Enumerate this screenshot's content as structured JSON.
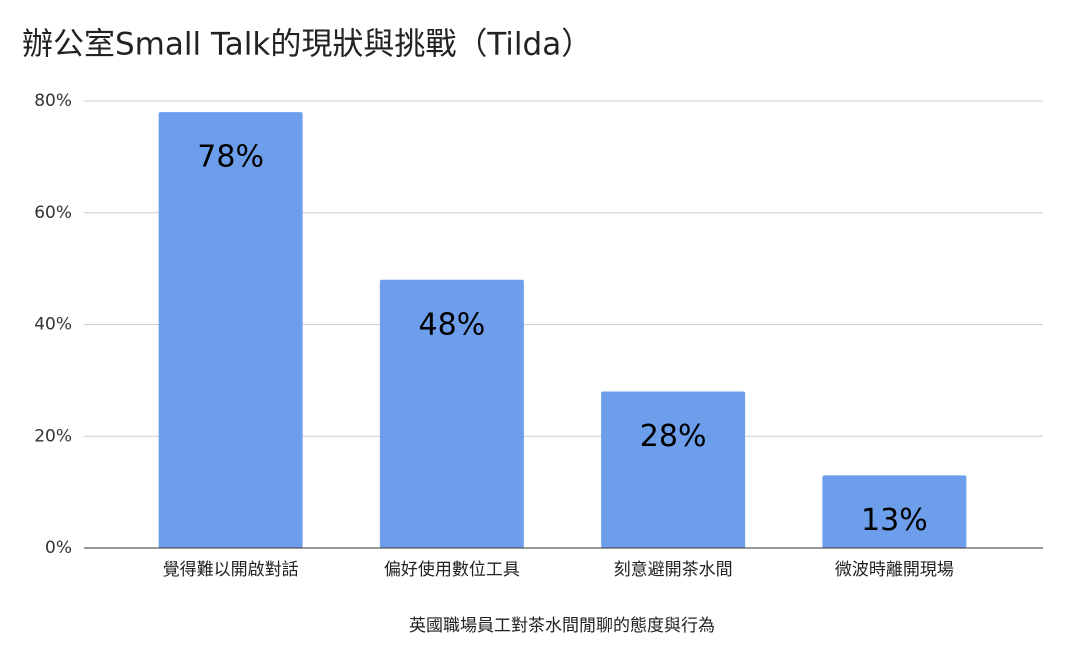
{
  "chart_data": {
    "type": "bar",
    "title": "辦公室Small Talk的現狀與挑戰（Tilda）",
    "x_label": "英國職場員工對茶水間閒聊的態度與行為",
    "categories": [
      "覺得難以開啟對話",
      "偏好使用數位工具",
      "刻意避開茶水間",
      "微波時離開現場"
    ],
    "values": [
      78,
      48,
      28,
      13
    ],
    "value_labels": [
      "78%",
      "48%",
      "28%",
      "13%"
    ],
    "color": "#6d9eeb",
    "ylim": [
      0,
      80
    ],
    "yticks": [
      {
        "value": 0,
        "label": "0%"
      },
      {
        "value": 20,
        "label": "20%"
      },
      {
        "value": 40,
        "label": "40%"
      },
      {
        "value": 60,
        "label": "60%"
      },
      {
        "value": 80,
        "label": "80%"
      }
    ],
    "grid": true
  }
}
